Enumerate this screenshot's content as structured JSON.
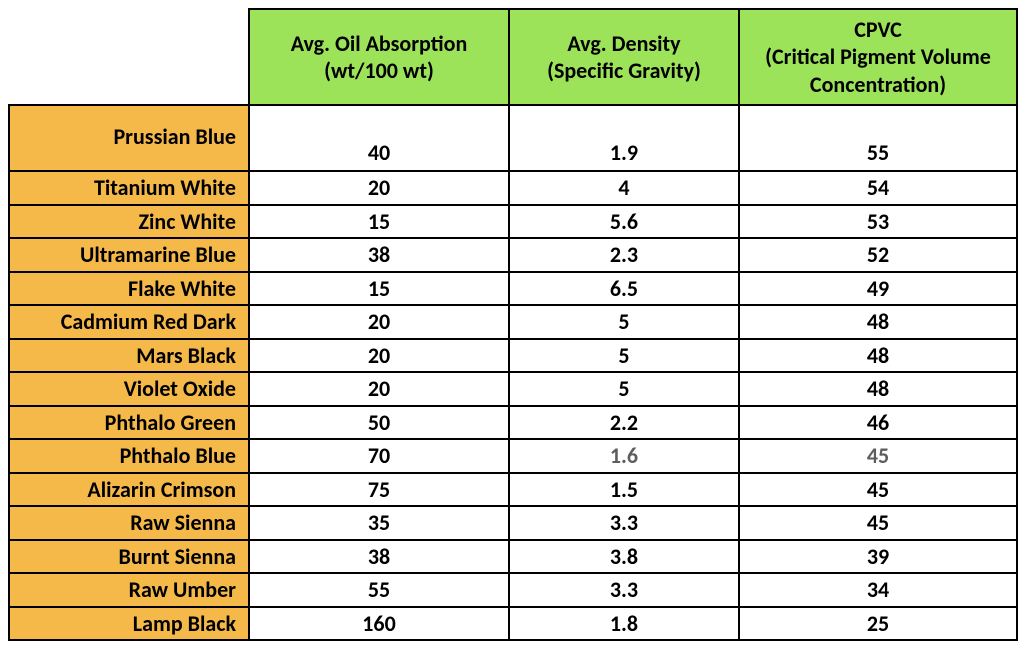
{
  "table": {
    "header_bg": "#9de35a",
    "rowlabel_bg": "#f5b94a",
    "border_color": "#000000",
    "font_family": "Calibri",
    "columns": [
      {
        "label_l1": "Avg. Oil Absorption",
        "label_l2": "(wt/100 wt)"
      },
      {
        "label_l1": "Avg. Density",
        "label_l2": "(Specific Gravity)"
      },
      {
        "label_l1": "CPVC",
        "label_l2": "(Critical Pigment Volume",
        "label_l3": "Concentration)"
      }
    ],
    "rows": [
      {
        "name": "Prussian Blue",
        "oil": "40",
        "density": "1.9",
        "cpvc": "55"
      },
      {
        "name": "Titanium White",
        "oil": "20",
        "density": "4",
        "cpvc": "54"
      },
      {
        "name": "Zinc White",
        "oil": "15",
        "density": "5.6",
        "cpvc": "53"
      },
      {
        "name": "Ultramarine Blue",
        "oil": "38",
        "density": "2.3",
        "cpvc": "52"
      },
      {
        "name": "Flake White",
        "oil": "15",
        "density": "6.5",
        "cpvc": "49"
      },
      {
        "name": "Cadmium Red Dark",
        "oil": "20",
        "density": "5",
        "cpvc": "48"
      },
      {
        "name": "Mars Black",
        "oil": "20",
        "density": "5",
        "cpvc": "48"
      },
      {
        "name": "Violet Oxide",
        "oil": "20",
        "density": "5",
        "cpvc": "48"
      },
      {
        "name": "Phthalo Green",
        "oil": "50",
        "density": "2.2",
        "cpvc": "46"
      },
      {
        "name": "Phthalo Blue",
        "oil": "70",
        "density": "1.6",
        "cpvc": "45",
        "muted_density": true,
        "muted_cpvc": true
      },
      {
        "name": "Alizarin Crimson",
        "oil": "75",
        "density": "1.5",
        "cpvc": "45"
      },
      {
        "name": "Raw Sienna",
        "oil": "35",
        "density": "3.3",
        "cpvc": "45"
      },
      {
        "name": "Burnt Sienna",
        "oil": "38",
        "density": "3.8",
        "cpvc": "39"
      },
      {
        "name": "Raw Umber",
        "oil": "55",
        "density": "3.3",
        "cpvc": "34"
      },
      {
        "name": "Lamp Black",
        "oil": "160",
        "density": "1.8",
        "cpvc": "25"
      }
    ]
  }
}
